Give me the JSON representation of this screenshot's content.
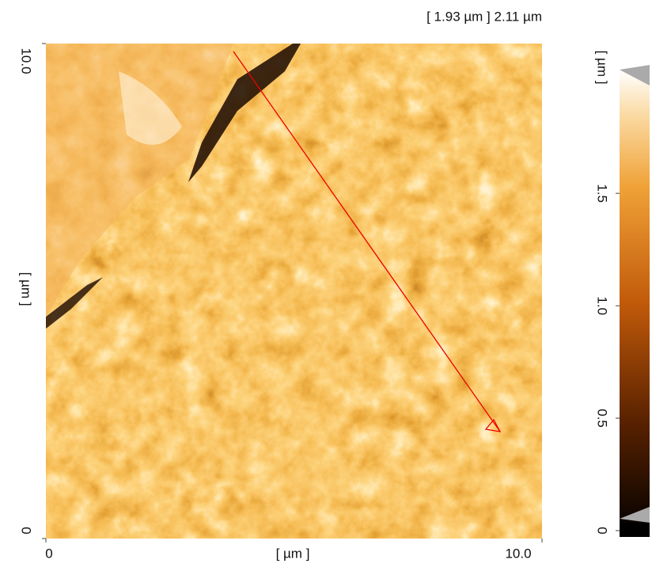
{
  "chart_data": {
    "type": "image",
    "title": "[ 1.93 µm ] 2.11 µm",
    "x_label": "[ µm ]",
    "y_label": "[ µm ]",
    "colorbar_label": "[ µm ]",
    "xlim": [
      0,
      10
    ],
    "xticks": [
      0,
      {
        "value": 10,
        "label": "10.0"
      }
    ],
    "ylim": [
      0,
      10
    ],
    "yticks": [
      0,
      {
        "value": 10,
        "label": "10.0"
      }
    ],
    "zlim": [
      0,
      2.05
    ],
    "zticks": [
      0,
      0.5,
      {
        "value": 1,
        "label": "1.0"
      },
      1.5
    ]
  }
}
